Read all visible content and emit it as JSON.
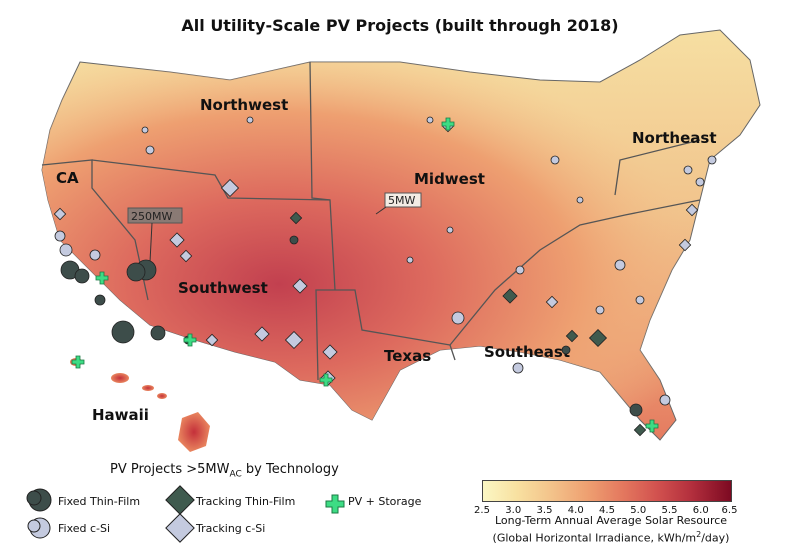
{
  "title": "All Utility-Scale PV Projects (built through 2018)",
  "regions": [
    "Northwest",
    "CA",
    "Midwest",
    "Northeast",
    "Southwest",
    "Texas",
    "Southeast",
    "Hawaii"
  ],
  "callouts": {
    "large": "250MW",
    "small": "5MW"
  },
  "legend": {
    "title_main": "PV Projects >5MW",
    "title_sub": "AC",
    "title_tail": " by Technology",
    "items": [
      "Fixed Thin-Film",
      "Tracking Thin-Film",
      "PV + Storage",
      "Fixed c-Si",
      "Tracking c-Si"
    ]
  },
  "colorbar": {
    "ticks": [
      "2.5",
      "3.0",
      "3.5",
      "4.0",
      "4.5",
      "5.0",
      "5.5",
      "6.0",
      "6.5"
    ],
    "label1": "Long-Term Annual Average Solar Resource",
    "label2_pre": "(Global Horizontal Irradiance, kWh/m",
    "label2_sup": "2",
    "label2_post": "/day)"
  },
  "colors": {
    "low": "#fbf7c4",
    "mid": "#eea071",
    "high": "#b32f3d",
    "fixed_thin_film": "#3d4d4a",
    "tracking_thin_film": "#3f5a4e",
    "c_si": "#c4cadf",
    "storage": "#3ddc84"
  }
}
